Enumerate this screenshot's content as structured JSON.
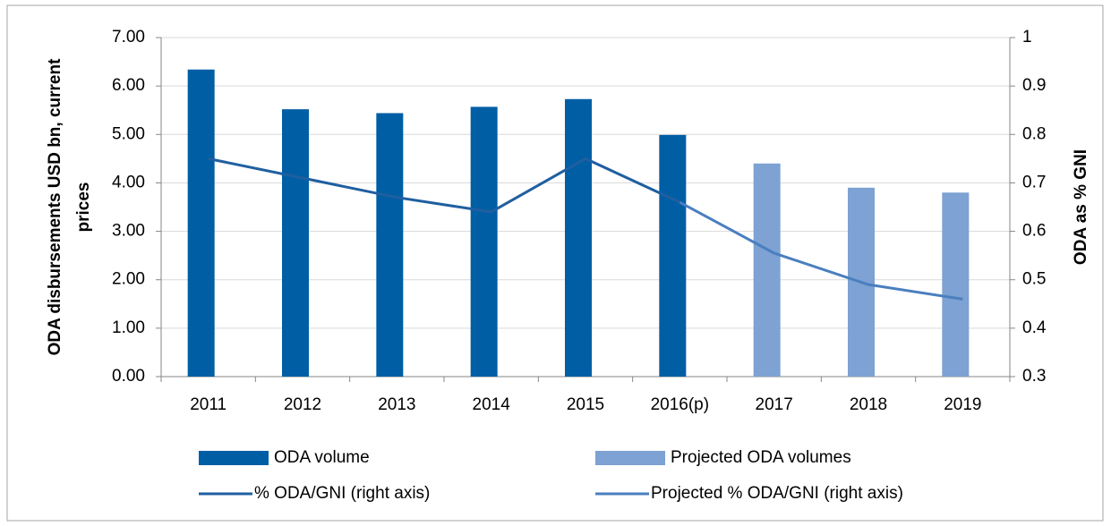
{
  "chart_data": {
    "type": "bar",
    "ylabel": [
      "ODA disbursements USD bn, current",
      "prices"
    ],
    "y2label": "ODA as % GNI",
    "categories": [
      "2011",
      "2012",
      "2013",
      "2014",
      "2015",
      "2016(p)",
      "2017",
      "2018",
      "2019"
    ],
    "series": [
      {
        "name": "ODA volume",
        "type": "bar",
        "color": "#005ea5",
        "values": [
          6.34,
          5.52,
          5.44,
          5.57,
          5.73,
          4.99,
          null,
          null,
          null
        ]
      },
      {
        "name": "Projected ODA volumes",
        "type": "bar",
        "color": "#7da2d3",
        "values": [
          null,
          null,
          null,
          null,
          null,
          null,
          4.4,
          3.9,
          3.8
        ]
      },
      {
        "name": "% ODA/GNI (right axis)",
        "type": "line",
        "axis": "y2",
        "color": "#1f5fa0",
        "values": [
          0.75,
          0.71,
          0.67,
          0.64,
          0.75,
          0.66,
          null,
          null,
          null
        ]
      },
      {
        "name": "Projected % ODA/GNI (right axis)",
        "type": "line",
        "axis": "y2",
        "color": "#4a7fbf",
        "values": [
          null,
          null,
          null,
          null,
          null,
          0.66,
          0.555,
          0.49,
          0.46
        ]
      }
    ],
    "ylim": [
      0,
      7
    ],
    "yticks": [
      {
        "value": 0,
        "label": "0.00"
      },
      {
        "value": 1,
        "label": "1.00"
      },
      {
        "value": 2,
        "label": "2.00"
      },
      {
        "value": 3,
        "label": "3.00"
      },
      {
        "value": 4,
        "label": "4.00"
      },
      {
        "value": 5,
        "label": "5.00"
      },
      {
        "value": 6,
        "label": "6.00"
      },
      {
        "value": 7,
        "label": "7.00"
      }
    ],
    "y2lim": [
      0.3,
      1
    ],
    "y2ticks": [
      0.3,
      0.4,
      0.5,
      0.6,
      0.7,
      0.8,
      0.9,
      1
    ],
    "grid": true,
    "legend": "bottom"
  }
}
